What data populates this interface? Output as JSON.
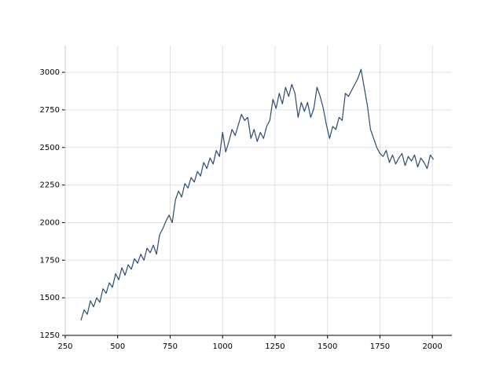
{
  "chart_data": {
    "type": "line",
    "x": [
      325,
      340,
      355,
      370,
      385,
      400,
      415,
      430,
      445,
      460,
      475,
      490,
      505,
      520,
      535,
      550,
      565,
      580,
      595,
      610,
      625,
      640,
      655,
      670,
      685,
      700,
      715,
      730,
      745,
      760,
      775,
      790,
      805,
      820,
      835,
      850,
      865,
      880,
      895,
      910,
      925,
      940,
      955,
      970,
      985,
      1000,
      1015,
      1030,
      1045,
      1060,
      1075,
      1090,
      1105,
      1120,
      1135,
      1150,
      1165,
      1180,
      1195,
      1210,
      1225,
      1240,
      1255,
      1270,
      1285,
      1300,
      1315,
      1330,
      1345,
      1360,
      1375,
      1390,
      1405,
      1420,
      1435,
      1450,
      1465,
      1480,
      1495,
      1510,
      1525,
      1540,
      1555,
      1570,
      1585,
      1600,
      1615,
      1630,
      1645,
      1660,
      1675,
      1690,
      1705,
      1720,
      1735,
      1750,
      1765,
      1780,
      1795,
      1810,
      1825,
      1840,
      1855,
      1870,
      1885,
      1900,
      1915,
      1930,
      1945,
      1960,
      1975,
      1990,
      2005
    ],
    "series": [
      {
        "color": "#2e4a6e",
        "values": [
          1350,
          1420,
          1390,
          1480,
          1440,
          1500,
          1470,
          1560,
          1530,
          1600,
          1570,
          1660,
          1620,
          1700,
          1650,
          1720,
          1690,
          1760,
          1730,
          1790,
          1750,
          1830,
          1800,
          1850,
          1790,
          1920,
          1960,
          2010,
          2050,
          2000,
          2150,
          2210,
          2170,
          2260,
          2230,
          2300,
          2270,
          2340,
          2310,
          2400,
          2360,
          2430,
          2390,
          2480,
          2440,
          2600,
          2470,
          2540,
          2620,
          2580,
          2650,
          2720,
          2680,
          2700,
          2560,
          2620,
          2540,
          2600,
          2560,
          2640,
          2680,
          2820,
          2760,
          2860,
          2790,
          2900,
          2840,
          2920,
          2860,
          2700,
          2800,
          2740,
          2800,
          2700,
          2760,
          2900,
          2840,
          2760,
          2650,
          2560,
          2640,
          2620,
          2700,
          2680,
          2860,
          2840,
          2880,
          2920,
          2960,
          3020,
          2900,
          2780,
          2620,
          2560,
          2500,
          2460,
          2440,
          2480,
          2400,
          2450,
          2390,
          2430,
          2460,
          2380,
          2440,
          2410,
          2450,
          2370,
          2430,
          2400,
          2360,
          2450,
          2420
        ]
      }
    ],
    "xlim": [
      250,
      2093
    ],
    "ylim": [
      1250,
      3178
    ],
    "xticks": [
      250,
      500,
      750,
      1000,
      1250,
      1500,
      1750,
      2000
    ],
    "yticks": [
      1250,
      1500,
      1750,
      2000,
      2250,
      2500,
      2750,
      3000
    ],
    "grid": true
  }
}
